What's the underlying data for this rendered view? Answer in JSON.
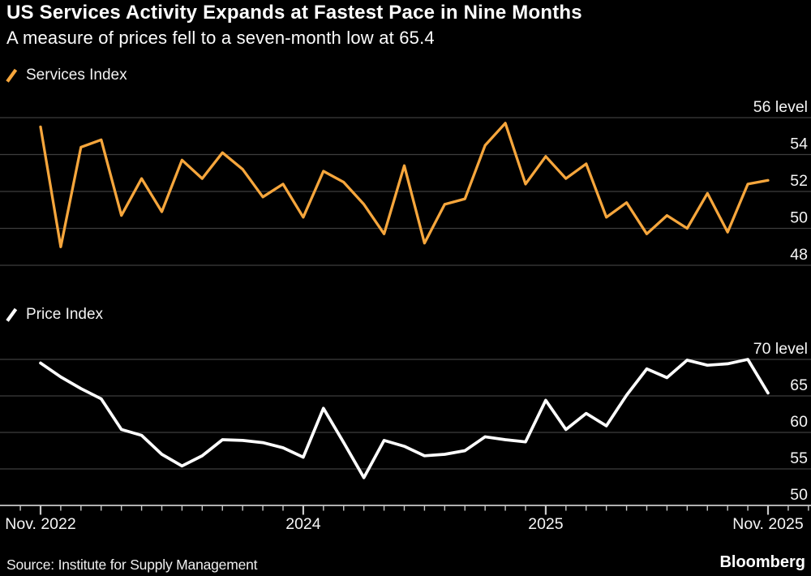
{
  "page": {
    "title": "US Services Activity Expands at Fastest Pace in Nine Months",
    "subtitle": "A measure of prices fell to a seven-month low at 65.4",
    "source": "Source: Institute for Supply Management",
    "brand": "Bloomberg"
  },
  "colors": {
    "background": "#000000",
    "services_line": "#F6A63C",
    "price_line": "#FFFFFF",
    "gridline": "#3D3D3D",
    "axis": "#C9C9C9",
    "label_text": "#F5F5F5"
  },
  "chart_data": [
    {
      "id": "services",
      "type": "line",
      "legend": "Services Index",
      "legend_position": "top-left",
      "line_color": "#F6A63C",
      "grid": true,
      "ylabels_position": "right",
      "yticks": [
        48,
        50,
        52,
        54,
        56
      ],
      "ylim": [
        48,
        57.2
      ],
      "unit_label": "level",
      "x": [
        "Nov 2022",
        "Dec 2022",
        "Jan 2023",
        "Feb 2023",
        "Mar 2023",
        "Apr 2023",
        "May 2023",
        "Jun 2023",
        "Jul 2023",
        "Aug 2023",
        "Sep 2023",
        "Oct 2023",
        "Nov 2023",
        "Dec 2023",
        "Jan 2024",
        "Feb 2024",
        "Mar 2024",
        "Apr 2024",
        "May 2024",
        "Jun 2024",
        "Jul 2024",
        "Aug 2024",
        "Sep 2024",
        "Oct 2024",
        "Nov 2024",
        "Dec 2024",
        "Jan 2025",
        "Feb 2025",
        "Mar 2025",
        "Apr 2025",
        "May 2025",
        "Jun 2025",
        "Jul 2025",
        "Aug 2025",
        "Sep 2025",
        "Oct 2025",
        "Nov 2025"
      ],
      "values": [
        55.5,
        49.0,
        54.4,
        54.8,
        50.7,
        52.7,
        50.9,
        53.7,
        52.7,
        54.1,
        53.2,
        51.7,
        52.4,
        50.6,
        53.1,
        52.5,
        51.3,
        49.7,
        53.4,
        49.2,
        51.3,
        51.6,
        54.5,
        55.7,
        52.4,
        53.9,
        52.7,
        53.5,
        50.6,
        51.4,
        49.7,
        50.7,
        50.0,
        51.9,
        49.8,
        52.4,
        52.6
      ]
    },
    {
      "id": "price",
      "type": "line",
      "legend": "Price Index",
      "legend_position": "top-left",
      "line_color": "#FFFFFF",
      "grid": true,
      "ylabels_position": "right",
      "yticks": [
        50,
        55,
        60,
        65,
        70
      ],
      "ylim": [
        48.9,
        73.1
      ],
      "unit_label": "level",
      "x": [
        "Nov 2022",
        "Dec 2022",
        "Jan 2023",
        "Feb 2023",
        "Mar 2023",
        "Apr 2023",
        "May 2023",
        "Jun 2023",
        "Jul 2023",
        "Aug 2023",
        "Sep 2023",
        "Oct 2023",
        "Nov 2023",
        "Dec 2023",
        "Jan 2024",
        "Feb 2024",
        "Mar 2024",
        "Apr 2024",
        "May 2024",
        "Jun 2024",
        "Jul 2024",
        "Aug 2024",
        "Sep 2024",
        "Oct 2024",
        "Nov 2024",
        "Dec 2024",
        "Jan 2025",
        "Feb 2025",
        "Mar 2025",
        "Apr 2025",
        "May 2025",
        "Jun 2025",
        "Jul 2025",
        "Aug 2025",
        "Sep 2025",
        "Oct 2025",
        "Nov 2025"
      ],
      "values": [
        69.5,
        67.6,
        66.0,
        64.6,
        60.4,
        59.6,
        57.0,
        55.4,
        56.8,
        59.0,
        58.9,
        58.6,
        57.9,
        56.6,
        63.3,
        58.6,
        53.8,
        58.9,
        58.1,
        56.8,
        57.0,
        57.5,
        59.4,
        59.0,
        58.7,
        64.4,
        60.4,
        62.6,
        60.9,
        65.1,
        68.7,
        67.5,
        69.9,
        69.2,
        69.4,
        70.0,
        65.4
      ]
    }
  ],
  "xaxis": {
    "tick_labels": [
      {
        "text": "Nov. 2022",
        "month": 0
      },
      {
        "text": "2024",
        "month": 13
      },
      {
        "text": "2025",
        "month": 25
      },
      {
        "text": "Nov. 2025",
        "month": 36
      }
    ],
    "major_tick_months": [
      0,
      13,
      25,
      36
    ],
    "minor_tick_interval": "monthly"
  }
}
